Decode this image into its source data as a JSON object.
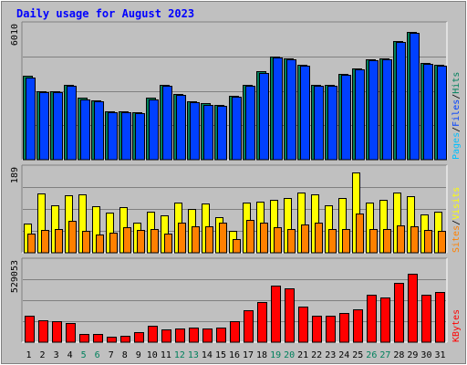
{
  "chart_data": {
    "type": "bar",
    "title": "Daily usage for August 2023",
    "categories": [
      "1",
      "2",
      "3",
      "4",
      "5",
      "6",
      "7",
      "8",
      "9",
      "10",
      "11",
      "12",
      "13",
      "14",
      "15",
      "16",
      "17",
      "18",
      "19",
      "20",
      "21",
      "22",
      "23",
      "24",
      "25",
      "26",
      "27",
      "28",
      "29",
      "30",
      "31"
    ],
    "weekend_days": [
      "5",
      "6",
      "12",
      "13",
      "19",
      "20",
      "26",
      "27"
    ],
    "panels": [
      {
        "id": "hits_files",
        "ymax_label": "6010",
        "ymax": 6010,
        "right_labels": [
          "Pages",
          "Files",
          "Hits"
        ],
        "series": [
          {
            "name": "Hits",
            "values": [
              3800,
              3100,
              3100,
              3400,
              2800,
              2700,
              2200,
              2200,
              2150,
              2800,
              3400,
              3000,
              2650,
              2550,
              2500,
              2900,
              3400,
              4000,
              4700,
              4600,
              4300,
              3400,
              3400,
              3900,
              4150,
              4550,
              4600,
              5400,
              5800,
              4400,
              4300
            ]
          },
          {
            "name": "Files",
            "values": [
              3750,
              3050,
              3050,
              3350,
              2750,
              2650,
              2150,
              2150,
              2100,
              2750,
              3350,
              2950,
              2600,
              2500,
              2450,
              2850,
              3350,
              3950,
              4650,
              4550,
              4250,
              3350,
              3350,
              3850,
              4100,
              4500,
              4550,
              5350,
              5750,
              4350,
              4250
            ]
          }
        ]
      },
      {
        "id": "sites_visits",
        "ymax_label": "189",
        "ymax": 189,
        "right_labels": [
          "Sites",
          "Visits"
        ],
        "series": [
          {
            "name": "Visits",
            "values": [
              68,
              137,
              110,
              132,
              134,
              108,
              92,
              105,
              70,
              95,
              87,
              116,
              100,
              113,
              81,
              51,
              115,
              117,
              122,
              126,
              139,
              135,
              109,
              125,
              185,
              115,
              121,
              139,
              130,
              88,
              95
            ]
          },
          {
            "name": "Sites",
            "values": [
              45,
              53,
              55,
              73,
              50,
              42,
              46,
              58,
              52,
              55,
              44,
              70,
              61,
              60,
              70,
              32,
              75,
              70,
              58,
              55,
              65,
              70,
              55,
              55,
              90,
              55,
              55,
              62,
              60,
              52,
              50
            ]
          }
        ]
      },
      {
        "id": "kbytes",
        "ymax_label": "529053",
        "ymax": 529053,
        "right_labels": [
          "KBytes"
        ],
        "series": [
          {
            "name": "KBytes",
            "values": [
              180000,
              150000,
              140000,
              130000,
              55000,
              55000,
              35000,
              42000,
              70000,
              110000,
              85000,
              95000,
              100000,
              90000,
              100000,
              140000,
              215000,
              270000,
              380000,
              360000,
              240000,
              180000,
              180000,
              195000,
              220000,
              320000,
              300000,
              400000,
              460000,
              320000,
              340000
            ]
          }
        ]
      }
    ],
    "colors": {
      "background": "#c0c0c0",
      "plot_bg": "#c0c0c0",
      "title": "#0000ff",
      "hits": "#00805c",
      "files": "#0040ff",
      "pages": "#00c0ff",
      "visits": "#ffff00",
      "sites": "#ff8000",
      "kbytes": "#ff0000",
      "kbytes_label": "#ff0000",
      "weekend_label": "#00805c",
      "weekday_label": "#000000"
    },
    "grid": true,
    "legend": "right, vertical"
  }
}
